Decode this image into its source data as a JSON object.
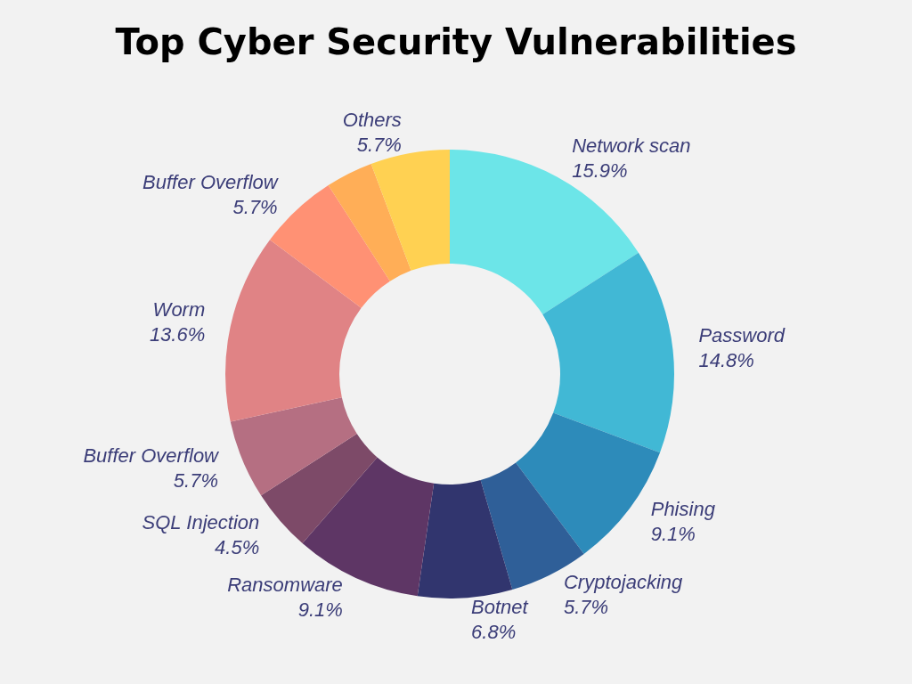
{
  "chart_data": {
    "type": "donut",
    "title": "Top Cyber Security Vulnerabilities",
    "categories": [
      "Network scan",
      "Password",
      "Phising",
      "Cryptojacking",
      "Botnet",
      "Ransomware",
      "SQL Injection",
      "Buffer Overflow",
      "Worm",
      "Buffer Overflow",
      null,
      "Others"
    ],
    "values": [
      15.9,
      14.8,
      9.1,
      5.7,
      6.8,
      9.1,
      4.5,
      5.7,
      13.6,
      5.7,
      3.4,
      5.7
    ],
    "value_labels": [
      "15.9%",
      "14.8%",
      "9.1%",
      "5.7%",
      "6.8%",
      "9.1%",
      "4.5%",
      "5.7%",
      "13.6%",
      "5.7%",
      null,
      "5.7%"
    ],
    "colors": [
      "#6ce5e8",
      "#41b8d5",
      "#2d8bba",
      "#2f5f98",
      "#31356e",
      "#5e3665",
      "#7d4a68",
      "#b56f82",
      "#e08385",
      "#ff9174",
      "#ffae57",
      "#ffd152"
    ]
  }
}
